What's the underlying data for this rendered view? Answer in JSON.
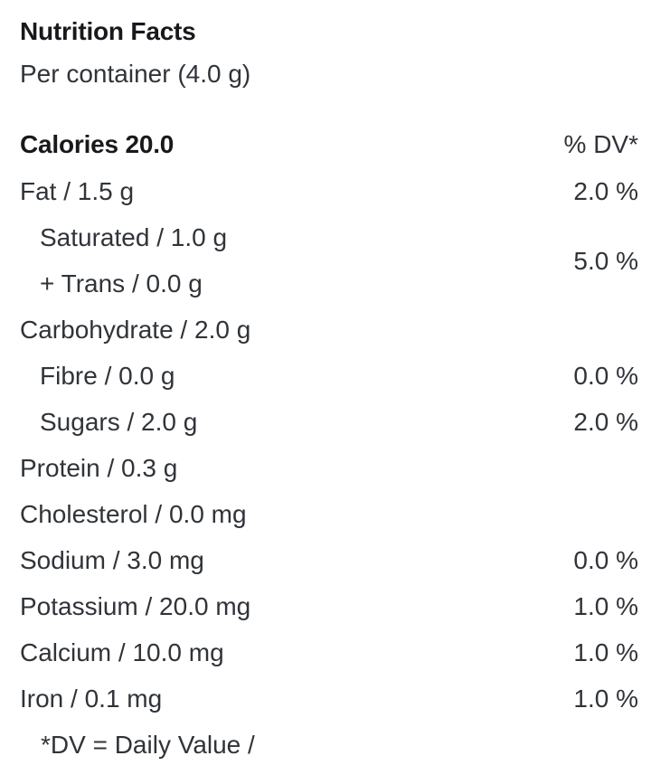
{
  "panel": {
    "title": "Nutrition Facts",
    "serving": "Per container (4.0 g)",
    "calories_label": "Calories 20.0",
    "dv_header": "% DV*",
    "rows": [
      {
        "lines": [
          "Fat / 1.5 g"
        ],
        "dv": "2.0 %",
        "indent": false
      },
      {
        "lines": [
          "Saturated / 1.0 g",
          "+ Trans / 0.0 g"
        ],
        "dv": "5.0 %",
        "indent": true
      },
      {
        "lines": [
          "Carbohydrate / 2.0 g"
        ],
        "dv": "",
        "indent": false
      },
      {
        "lines": [
          "Fibre / 0.0 g"
        ],
        "dv": "0.0 %",
        "indent": true
      },
      {
        "lines": [
          "Sugars / 2.0 g"
        ],
        "dv": "2.0 %",
        "indent": true
      },
      {
        "lines": [
          "Protein / 0.3 g"
        ],
        "dv": "",
        "indent": false
      },
      {
        "lines": [
          "Cholesterol / 0.0 mg"
        ],
        "dv": "",
        "indent": false
      },
      {
        "lines": [
          "Sodium / 3.0 mg"
        ],
        "dv": "0.0 %",
        "indent": false
      },
      {
        "lines": [
          "Potassium / 20.0 mg"
        ],
        "dv": "1.0 %",
        "indent": false
      },
      {
        "lines": [
          "Calcium / 10.0 mg"
        ],
        "dv": "1.0 %",
        "indent": false
      },
      {
        "lines": [
          "Iron / 0.1 mg"
        ],
        "dv": "1.0 %",
        "indent": false
      }
    ],
    "footnote": "*DV = Daily Value /"
  },
  "colors": {
    "background": "#ffffff",
    "text_regular": "#303439",
    "text_bold": "#17191c"
  }
}
